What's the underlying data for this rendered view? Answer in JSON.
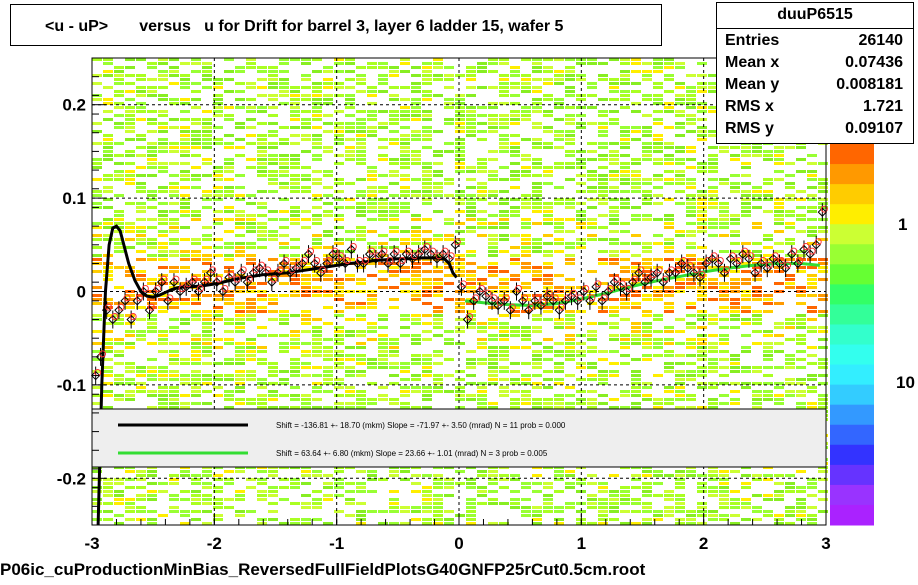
{
  "title": "<u - uP>       versus   u for Drift for barrel 3, layer 6 ladder 15, wafer 5",
  "stats": {
    "name": "duuP6515",
    "rows": [
      {
        "key": "Entries",
        "value": "26140"
      },
      {
        "key": "Mean x",
        "value": "0.07436"
      },
      {
        "key": "Mean y",
        "value": "0.008181"
      },
      {
        "key": "RMS x",
        "value": "1.721"
      },
      {
        "key": "RMS y",
        "value": "0.09107"
      }
    ]
  },
  "footer": "P06ic_cuProductionMinBias_ReversedFullFieldPlotsG40GNFP25rCut0.5cm.root",
  "legend": {
    "entries": [
      {
        "text": "Shift =  -136.81 +- 18.70 (mkm) Slope =   -71.97 +- 3.50 (mrad)  N = 11 prob = 0.000",
        "color": "#000000"
      },
      {
        "text": "Shift =    63.64 +- 6.80 (mkm) Slope =    23.66 +- 1.01 (mrad)  N = 3 prob = 0.005",
        "color": "#33dd33"
      }
    ]
  },
  "chart_data": {
    "type": "heatmap",
    "xlim": [
      -3,
      3
    ],
    "ylim": [
      -0.25,
      0.25
    ],
    "x_ticks": [
      "-3",
      "-2",
      "-1",
      "0",
      "1",
      "2",
      "3"
    ],
    "y_ticks": [
      "-0.2",
      "-0.1",
      "0",
      "0.1",
      "0.2"
    ],
    "colorbar_ticks": [
      "1",
      "10"
    ],
    "grid": true,
    "profile_left": {
      "x": [
        -2.97,
        -2.93,
        -2.88,
        -2.83,
        -2.78,
        -2.73,
        -2.68,
        -2.63,
        -2.58,
        -2.53,
        -2.48,
        -2.43,
        -2.38,
        -2.33,
        -2.28,
        -2.23,
        -2.18,
        -2.13,
        -2.08,
        -2.03,
        -1.98,
        -1.93,
        -1.88,
        -1.83,
        -1.78,
        -1.73,
        -1.68,
        -1.63,
        -1.58,
        -1.53,
        -1.48,
        -1.43,
        -1.38,
        -1.33,
        -1.28,
        -1.23,
        -1.18,
        -1.13,
        -1.08,
        -1.03,
        -0.98,
        -0.93,
        -0.88,
        -0.83,
        -0.78,
        -0.73,
        -0.68,
        -0.63,
        -0.58,
        -0.53,
        -0.48,
        -0.43,
        -0.38,
        -0.33,
        -0.28,
        -0.23,
        -0.18,
        -0.13,
        -0.08,
        -0.03
      ],
      "y": [
        -0.09,
        -0.07,
        -0.02,
        -0.03,
        -0.02,
        -0.01,
        -0.03,
        -0.01,
        0.0,
        -0.02,
        0.0,
        0.01,
        -0.01,
        0.01,
        0.0,
        0.005,
        0.01,
        0.0,
        0.01,
        0.02,
        0.01,
        0.0,
        0.015,
        0.01,
        0.02,
        0.01,
        0.02,
        0.025,
        0.02,
        0.01,
        0.02,
        0.03,
        0.02,
        0.025,
        0.03,
        0.04,
        0.03,
        0.02,
        0.03,
        0.04,
        0.035,
        0.03,
        0.045,
        0.03,
        0.03,
        0.04,
        0.035,
        0.04,
        0.03,
        0.04,
        0.03,
        0.04,
        0.035,
        0.04,
        0.045,
        0.04,
        0.035,
        0.04,
        0.035,
        0.05
      ]
    },
    "profile_right": {
      "x": [
        0.02,
        0.07,
        0.12,
        0.17,
        0.22,
        0.27,
        0.32,
        0.37,
        0.42,
        0.47,
        0.52,
        0.57,
        0.62,
        0.67,
        0.72,
        0.77,
        0.82,
        0.87,
        0.92,
        0.97,
        1.02,
        1.07,
        1.12,
        1.17,
        1.22,
        1.27,
        1.32,
        1.37,
        1.42,
        1.47,
        1.52,
        1.57,
        1.62,
        1.67,
        1.72,
        1.77,
        1.82,
        1.87,
        1.92,
        1.97,
        2.02,
        2.07,
        2.12,
        2.17,
        2.22,
        2.27,
        2.32,
        2.37,
        2.42,
        2.47,
        2.52,
        2.57,
        2.62,
        2.67,
        2.72,
        2.77,
        2.82,
        2.87,
        2.92,
        2.97
      ],
      "y": [
        0.005,
        -0.03,
        -0.01,
        0.0,
        -0.005,
        -0.01,
        -0.015,
        -0.01,
        -0.02,
        0.0,
        -0.01,
        -0.02,
        -0.01,
        -0.015,
        -0.005,
        -0.01,
        -0.02,
        -0.01,
        -0.005,
        -0.01,
        0.0,
        -0.01,
        0.005,
        -0.01,
        0.0,
        0.01,
        0.005,
        0.0,
        0.01,
        0.02,
        0.01,
        0.015,
        0.02,
        0.01,
        0.02,
        0.02,
        0.03,
        0.025,
        0.02,
        0.015,
        0.03,
        0.035,
        0.03,
        0.02,
        0.035,
        0.03,
        0.04,
        0.035,
        0.02,
        0.03,
        0.025,
        0.035,
        0.03,
        0.025,
        0.04,
        0.03,
        0.045,
        0.04,
        0.05,
        0.085
      ]
    },
    "fit_left": {
      "x": [
        -2.95,
        -2.92,
        -2.89,
        -2.86,
        -2.83,
        -2.8,
        -2.77,
        -2.74,
        -2.7,
        -2.65,
        -2.6,
        -2.55,
        -2.5,
        -2.45,
        -2.4,
        -2.35,
        -2.3,
        -2.25,
        -2.2,
        -2.1,
        -2.0,
        -1.9,
        -1.8,
        -1.7,
        -1.6,
        -1.5,
        -1.4,
        -1.3,
        -1.2,
        -1.1,
        -1.0,
        -0.9,
        -0.8,
        -0.7,
        -0.6,
        -0.5,
        -0.4,
        -0.3,
        -0.2,
        -0.12,
        -0.08,
        -0.05,
        -0.02
      ],
      "y": [
        -0.25,
        -0.1,
        0.0,
        0.05,
        0.068,
        0.07,
        0.065,
        0.05,
        0.03,
        0.012,
        0.0,
        -0.005,
        -0.006,
        -0.004,
        -0.001,
        0.002,
        0.004,
        0.005,
        0.005,
        0.006,
        0.008,
        0.011,
        0.014,
        0.016,
        0.018,
        0.019,
        0.02,
        0.022,
        0.024,
        0.026,
        0.028,
        0.03,
        0.031,
        0.033,
        0.034,
        0.035,
        0.035,
        0.036,
        0.036,
        0.035,
        0.03,
        0.02,
        0.015
      ]
    },
    "fit_right": {
      "x": [
        0.05,
        0.2,
        0.4,
        0.6,
        0.8,
        1.0,
        1.2,
        1.4,
        1.6,
        1.8,
        2.0,
        2.2,
        2.4,
        2.6,
        2.8,
        2.95
      ],
      "y": [
        -0.01,
        -0.012,
        -0.014,
        -0.015,
        -0.013,
        -0.008,
        -0.002,
        0.005,
        0.011,
        0.016,
        0.021,
        0.025,
        0.028,
        0.03,
        0.03,
        0.028
      ]
    }
  }
}
